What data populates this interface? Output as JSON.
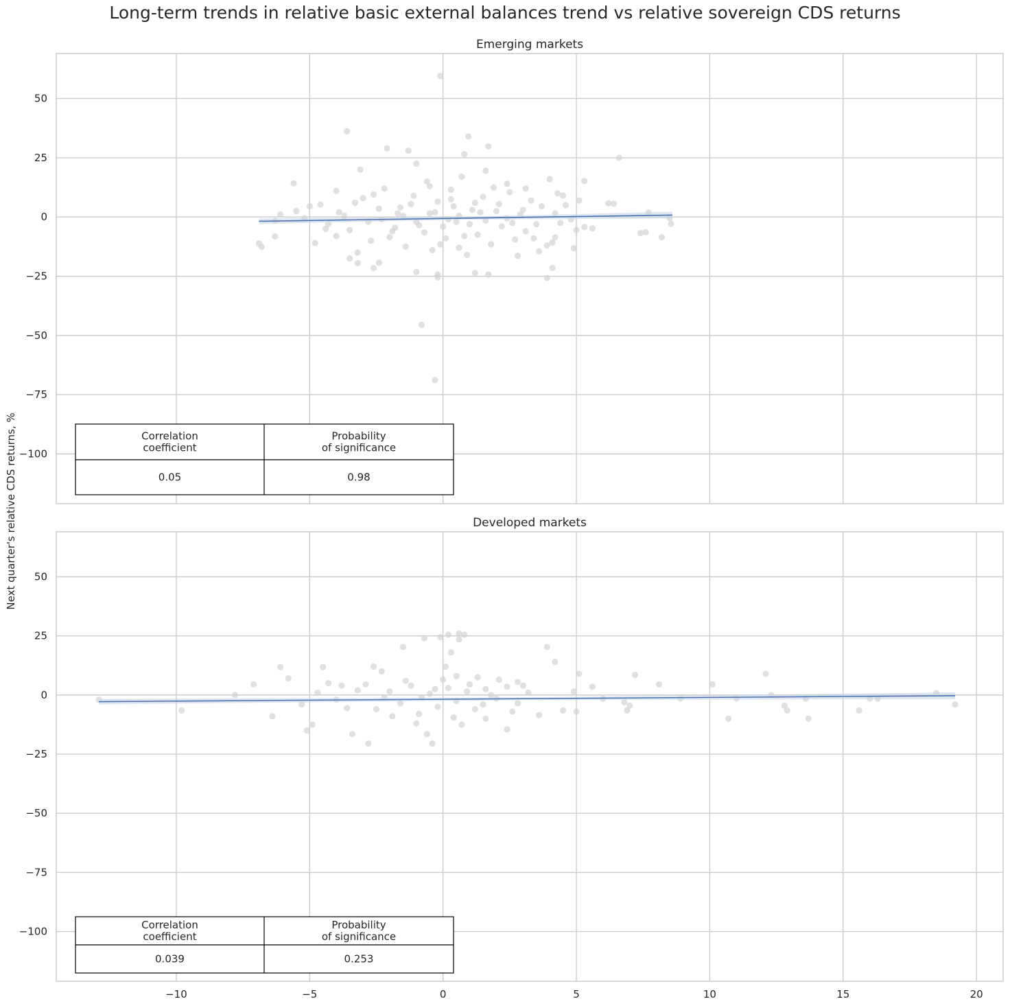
{
  "title": "Long-term trends in relative basic external balances trend vs relative sovereign CDS returns",
  "ylabel": "Next quarter's relative CDS returns, %",
  "colors": {
    "points": "#d3d3d3",
    "line": "#4c72b0",
    "ci": "#c8d5ea",
    "grid": "#cccccc",
    "frame": "#cccccc"
  },
  "chart_data": [
    {
      "type": "scatter",
      "title": "Emerging markets",
      "xlabel": "",
      "ylabel": "Next quarter's relative CDS returns, %",
      "xlim": [
        -14.5,
        21
      ],
      "ylim": [
        -121,
        69
      ],
      "xticks": [
        -10,
        -5,
        0,
        5,
        10,
        15,
        20
      ],
      "xtick_labels": [
        "−10",
        "−5",
        "0",
        "5",
        "10",
        "15",
        "20"
      ],
      "yticks": [
        50,
        25,
        0,
        -25,
        -50,
        -75,
        -100
      ],
      "ytick_labels": [
        "50",
        "25",
        "0",
        "−25",
        "−50",
        "−75",
        "−100"
      ],
      "show_xtick_labels": false,
      "regression": {
        "x": [
          -6.9,
          8.6
        ],
        "y": [
          -1.8,
          0.8
        ]
      },
      "table": {
        "headers": [
          "Correlation\ncoefficient",
          "Probability\nof significance"
        ],
        "values": [
          "0.05",
          "0.98"
        ]
      },
      "points": [
        [
          -0.1,
          59.5
        ],
        [
          -3.6,
          36.2
        ],
        [
          0.95,
          34.0
        ],
        [
          -2.1,
          29.0
        ],
        [
          1.7,
          29.8
        ],
        [
          -1.3,
          28.0
        ],
        [
          6.6,
          25.0
        ],
        [
          0.8,
          26.5
        ],
        [
          -1.0,
          22.5
        ],
        [
          -3.1,
          20.0
        ],
        [
          1.6,
          19.5
        ],
        [
          -5.6,
          14.2
        ],
        [
          2.4,
          14.0
        ],
        [
          4.0,
          16.0
        ],
        [
          5.3,
          15.2
        ],
        [
          3.1,
          12.0
        ],
        [
          -4.0,
          11.0
        ],
        [
          4.3,
          10.0
        ],
        [
          5.1,
          7.0
        ],
        [
          6.2,
          5.8
        ],
        [
          6.4,
          5.6
        ],
        [
          7.7,
          1.8
        ],
        [
          8.5,
          -0.5
        ],
        [
          8.55,
          -2.9
        ],
        [
          8.2,
          -8.5
        ],
        [
          7.6,
          -6.4
        ],
        [
          7.4,
          -6.8
        ],
        [
          5.6,
          -4.8
        ],
        [
          5.0,
          -5.5
        ],
        [
          5.3,
          -4.2
        ],
        [
          4.9,
          -13.2
        ],
        [
          4.2,
          -8.6
        ],
        [
          4.1,
          -10.8
        ],
        [
          4.1,
          -21.5
        ],
        [
          3.9,
          -25.8
        ],
        [
          2.8,
          -16.4
        ],
        [
          1.7,
          -24.3
        ],
        [
          1.2,
          -23.6
        ],
        [
          -0.2,
          -24.3
        ],
        [
          -0.2,
          -25.5
        ],
        [
          -1.0,
          -23.2
        ],
        [
          -0.8,
          -45.5
        ],
        [
          -0.3,
          -68.8
        ],
        [
          -2.6,
          -21.6
        ],
        [
          -2.4,
          -19.3
        ],
        [
          -3.2,
          -19.5
        ],
        [
          -3.5,
          -17.5
        ],
        [
          -3.2,
          -15.0
        ],
        [
          -4.8,
          -11.0
        ],
        [
          -6.3,
          -8.2
        ],
        [
          -6.9,
          -11.2
        ],
        [
          -6.8,
          -12.6
        ],
        [
          -6.3,
          -1.6
        ],
        [
          -6.1,
          1.0
        ],
        [
          -5.2,
          -0.5
        ],
        [
          -4.6,
          5.2
        ],
        [
          -4.3,
          -3.0
        ],
        [
          -3.9,
          2.0
        ],
        [
          -3.5,
          -5.5
        ],
        [
          -3.0,
          8.0
        ],
        [
          -2.7,
          -10.0
        ],
        [
          -2.2,
          12.0
        ],
        [
          -1.9,
          -6.0
        ],
        [
          -1.6,
          4.0
        ],
        [
          -1.4,
          -12.5
        ],
        [
          -1.1,
          9.0
        ],
        [
          -0.9,
          -3.5
        ],
        [
          -0.6,
          15.0
        ],
        [
          -0.4,
          -14.0
        ],
        [
          -0.2,
          6.5
        ],
        [
          0.1,
          -9.0
        ],
        [
          0.3,
          11.5
        ],
        [
          0.5,
          -2.0
        ],
        [
          0.7,
          17.0
        ],
        [
          0.9,
          -16.0
        ],
        [
          1.1,
          3.0
        ],
        [
          1.3,
          -7.5
        ],
        [
          1.5,
          8.5
        ],
        [
          1.8,
          -11.5
        ],
        [
          2.0,
          2.5
        ],
        [
          2.2,
          -4.0
        ],
        [
          2.5,
          10.5
        ],
        [
          2.7,
          -9.5
        ],
        [
          2.9,
          1.0
        ],
        [
          3.1,
          -6.0
        ],
        [
          3.3,
          7.0
        ],
        [
          3.5,
          -3.0
        ],
        [
          3.7,
          4.5
        ],
        [
          3.9,
          -12.0
        ],
        [
          4.2,
          1.5
        ],
        [
          4.4,
          -2.5
        ],
        [
          4.6,
          5.0
        ],
        [
          4.8,
          -1.0
        ],
        [
          -5.0,
          4.5
        ],
        [
          -4.0,
          -8.0
        ],
        [
          -3.3,
          6.0
        ],
        [
          -2.8,
          -2.0
        ],
        [
          -2.4,
          3.5
        ],
        [
          -2.0,
          -8.5
        ],
        [
          -1.7,
          1.5
        ],
        [
          -1.2,
          5.5
        ],
        [
          -0.7,
          -6.5
        ],
        [
          -0.3,
          2.0
        ],
        [
          0.0,
          -4.0
        ],
        [
          0.4,
          4.5
        ],
        [
          0.8,
          -8.0
        ],
        [
          1.2,
          6.0
        ],
        [
          1.6,
          -1.5
        ],
        [
          2.1,
          5.5
        ],
        [
          2.6,
          -2.5
        ],
        [
          3.0,
          3.0
        ],
        [
          3.4,
          -9.0
        ],
        [
          -1.5,
          0.5
        ],
        [
          -1.0,
          -2.0
        ],
        [
          -0.5,
          1.5
        ],
        [
          0.2,
          -1.0
        ],
        [
          0.6,
          0.5
        ],
        [
          1.0,
          -3.0
        ],
        [
          -2.3,
          -1.0
        ],
        [
          -3.7,
          0.5
        ],
        [
          1.4,
          2.0
        ],
        [
          2.4,
          -0.5
        ],
        [
          -1.8,
          -4.5
        ],
        [
          0.3,
          7.5
        ],
        [
          -0.1,
          -11.5
        ],
        [
          1.9,
          12.5
        ],
        [
          -2.6,
          9.5
        ],
        [
          3.6,
          -14.5
        ],
        [
          -4.4,
          -5.0
        ],
        [
          4.5,
          9.0
        ],
        [
          -5.5,
          2.5
        ],
        [
          -0.5,
          13.0
        ],
        [
          0.6,
          -13.0
        ]
      ]
    },
    {
      "type": "scatter",
      "title": "Developed markets",
      "xlabel": "",
      "ylabel": "Next quarter's relative CDS returns, %",
      "xlim": [
        -14.5,
        21
      ],
      "ylim": [
        -121,
        69
      ],
      "xticks": [
        -10,
        -5,
        0,
        5,
        10,
        15,
        20
      ],
      "xtick_labels": [
        "−10",
        "−5",
        "0",
        "5",
        "10",
        "15",
        "20"
      ],
      "yticks": [
        50,
        25,
        0,
        -25,
        -50,
        -75,
        -100
      ],
      "ytick_labels": [
        "50",
        "25",
        "0",
        "−25",
        "−50",
        "−75",
        "−100"
      ],
      "show_xtick_labels": true,
      "regression": {
        "x": [
          -12.9,
          19.2
        ],
        "y": [
          -2.8,
          -0.3
        ]
      },
      "table": {
        "headers": [
          "Correlation\ncoefficient",
          "Probability\nof significance"
        ],
        "values": [
          "0.039",
          "0.253"
        ]
      },
      "points": [
        [
          -12.9,
          -2.0
        ],
        [
          -9.8,
          -6.5
        ],
        [
          -7.8,
          0.0
        ],
        [
          -7.1,
          4.5
        ],
        [
          -6.1,
          11.8
        ],
        [
          -5.8,
          7.0
        ],
        [
          -6.4,
          -9.0
        ],
        [
          -5.3,
          -4.0
        ],
        [
          -4.9,
          -12.5
        ],
        [
          -5.1,
          -15.0
        ],
        [
          -4.5,
          11.8
        ],
        [
          -4.3,
          5.0
        ],
        [
          -3.8,
          4.0
        ],
        [
          -3.4,
          -16.5
        ],
        [
          -2.8,
          -20.5
        ],
        [
          -2.6,
          12.0
        ],
        [
          -2.3,
          10.0
        ],
        [
          -1.5,
          20.3
        ],
        [
          -0.7,
          24.0
        ],
        [
          -0.1,
          24.5
        ],
        [
          0.2,
          25.5
        ],
        [
          0.6,
          26.0
        ],
        [
          0.8,
          25.5
        ],
        [
          0.6,
          23.5
        ],
        [
          0.3,
          18.0
        ],
        [
          -0.4,
          -20.5
        ],
        [
          -0.6,
          -16.5
        ],
        [
          0.1,
          12.0
        ],
        [
          0.5,
          8.0
        ],
        [
          1.3,
          7.5
        ],
        [
          1.6,
          -10.0
        ],
        [
          2.4,
          -14.5
        ],
        [
          2.8,
          5.5
        ],
        [
          3.9,
          20.3
        ],
        [
          4.2,
          14.0
        ],
        [
          4.9,
          1.5
        ],
        [
          5.0,
          -7.0
        ],
        [
          5.1,
          9.0
        ],
        [
          5.6,
          3.5
        ],
        [
          6.0,
          -1.5
        ],
        [
          6.8,
          -3.0
        ],
        [
          6.9,
          -6.5
        ],
        [
          7.0,
          -4.5
        ],
        [
          7.2,
          8.5
        ],
        [
          8.1,
          4.5
        ],
        [
          8.9,
          -1.5
        ],
        [
          10.1,
          4.5
        ],
        [
          10.7,
          -10.0
        ],
        [
          11.0,
          -1.5
        ],
        [
          12.1,
          9.0
        ],
        [
          12.3,
          0.0
        ],
        [
          12.8,
          -4.5
        ],
        [
          12.9,
          -6.5
        ],
        [
          13.6,
          -1.5
        ],
        [
          13.7,
          -10.0
        ],
        [
          15.6,
          -6.5
        ],
        [
          16.0,
          -1.5
        ],
        [
          16.3,
          -1.5
        ],
        [
          18.5,
          0.8
        ],
        [
          19.2,
          -4.0
        ],
        [
          -4.0,
          -2.0
        ],
        [
          -3.2,
          2.0
        ],
        [
          -2.5,
          -6.0
        ],
        [
          -2.0,
          1.5
        ],
        [
          -1.6,
          -3.5
        ],
        [
          -1.2,
          4.0
        ],
        [
          -0.9,
          -8.0
        ],
        [
          -0.5,
          0.5
        ],
        [
          -0.2,
          -5.0
        ],
        [
          0.2,
          3.0
        ],
        [
          0.5,
          -2.5
        ],
        [
          0.9,
          1.5
        ],
        [
          1.2,
          -6.0
        ],
        [
          1.6,
          2.5
        ],
        [
          2.0,
          -1.5
        ],
        [
          2.4,
          3.5
        ],
        [
          2.8,
          -3.5
        ],
        [
          3.2,
          1.0
        ],
        [
          3.6,
          -8.5
        ],
        [
          -3.6,
          -5.5
        ],
        [
          -2.9,
          4.5
        ],
        [
          -1.9,
          -9.0
        ],
        [
          -1.4,
          6.0
        ],
        [
          -0.8,
          -1.0
        ],
        [
          0.0,
          6.5
        ],
        [
          0.4,
          -9.5
        ],
        [
          1.0,
          4.5
        ],
        [
          1.5,
          -4.0
        ],
        [
          2.1,
          6.5
        ],
        [
          2.6,
          -7.0
        ],
        [
          3.0,
          4.0
        ],
        [
          -4.7,
          1.0
        ],
        [
          -1.0,
          -12.0
        ],
        [
          0.7,
          -12.5
        ],
        [
          -0.3,
          2.5
        ],
        [
          1.8,
          0.0
        ],
        [
          -2.2,
          -1.0
        ],
        [
          4.5,
          -6.5
        ]
      ]
    }
  ]
}
